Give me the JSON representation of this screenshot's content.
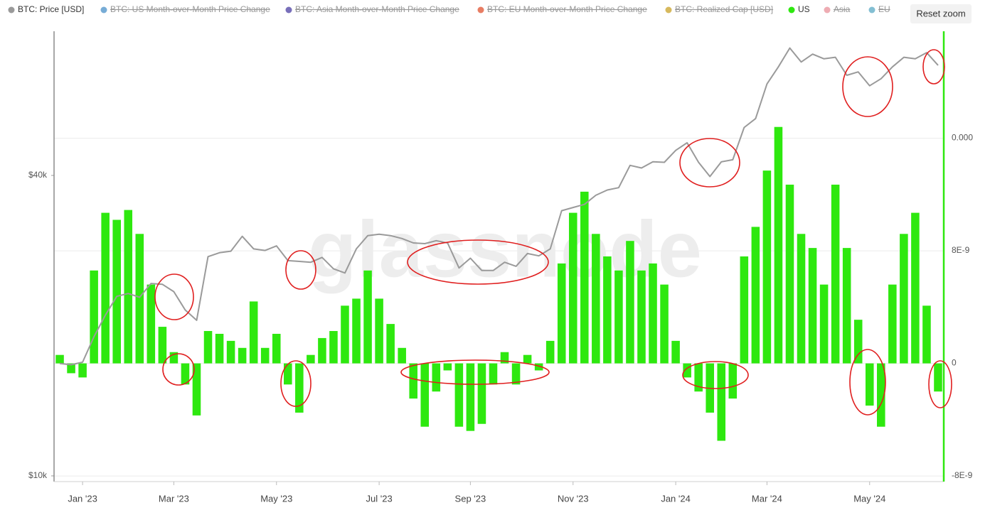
{
  "chart_data": {
    "type": "bar",
    "watermark": "glassnode",
    "reset_zoom": "Reset zoom",
    "categories": [
      null,
      null,
      "Jan '23",
      null,
      null,
      null,
      null,
      null,
      null,
      null,
      "Mar '23",
      null,
      null,
      null,
      null,
      null,
      null,
      null,
      null,
      "May '23",
      null,
      null,
      null,
      null,
      null,
      null,
      null,
      null,
      "Jul '23",
      null,
      null,
      null,
      null,
      null,
      null,
      null,
      "Sep '23",
      null,
      null,
      null,
      null,
      null,
      null,
      null,
      null,
      "Nov '23",
      null,
      null,
      null,
      null,
      null,
      null,
      null,
      null,
      "Jan '24",
      null,
      null,
      null,
      null,
      null,
      null,
      null,
      "Mar '24",
      null,
      null,
      null,
      null,
      null,
      null,
      null,
      null,
      "May '24",
      null,
      null,
      null,
      null,
      null,
      null
    ],
    "series": [
      {
        "name": "BTC: Price [USD]",
        "color": "#9a9a9a",
        "type": "line",
        "axis": "y",
        "hidden": false,
        "values": [
          16800,
          16700,
          16900,
          19000,
          21000,
          22900,
          23200,
          22800,
          24300,
          24200,
          23400,
          21500,
          20500,
          27500,
          28000,
          28200,
          30200,
          28500,
          28300,
          28900,
          27000,
          26900,
          26800,
          27400,
          26000,
          25500,
          28500,
          30300,
          30500,
          30300,
          29900,
          29300,
          29200,
          29600,
          29300,
          26100,
          27300,
          25800,
          25800,
          26800,
          26300,
          27900,
          27600,
          28500,
          34000,
          34500,
          35000,
          36500,
          37400,
          37800,
          41900,
          41400,
          42600,
          42500,
          44900,
          46500,
          42500,
          39800,
          42600,
          43000,
          49900,
          52000,
          61000,
          66000,
          72000,
          67500,
          70000,
          68500,
          69000,
          63500,
          64500,
          60500,
          62500,
          66000,
          69000,
          68500,
          70500,
          66500
        ]
      },
      {
        "name": "BTC: US Month-over-Month Price Change",
        "color": "#4a90c8",
        "hidden": true
      },
      {
        "name": "BTC: Asia Month-over-Month Price Change",
        "color": "#4b3fa3",
        "hidden": true
      },
      {
        "name": "BTC: EU Month-over-Month Price Change",
        "color": "#e0522f",
        "hidden": true
      },
      {
        "name": "BTC: Realized Cap [USD]",
        "color": "#c9a227",
        "hidden": true
      },
      {
        "name": "US",
        "color": "#2ee80f",
        "type": "bar",
        "axis": "y2",
        "hidden": false,
        "values": [
          6e-10,
          -7e-10,
          -1e-09,
          6.6e-09,
          1.07e-08,
          1.02e-08,
          1.09e-08,
          9.2e-09,
          5.6e-09,
          2.6e-09,
          8e-10,
          -1.5e-09,
          -3.7e-09,
          2.3e-09,
          2.1e-09,
          1.6e-09,
          1.1e-09,
          4.4e-09,
          1.1e-09,
          2.1e-09,
          -1.5e-09,
          -3.5e-09,
          6e-10,
          1.8e-09,
          2.3e-09,
          4.1e-09,
          4.6e-09,
          6.6e-09,
          4.6e-09,
          2.8e-09,
          1.1e-09,
          -2.5e-09,
          -4.5e-09,
          -2e-09,
          -5e-10,
          -4.5e-09,
          -4.8e-09,
          -4.3e-09,
          -1.5e-09,
          8e-10,
          -1.5e-09,
          6e-10,
          -5e-10,
          1.6e-09,
          7.1e-09,
          1.07e-08,
          1.22e-08,
          9.2e-09,
          7.6e-09,
          6.6e-09,
          8.7e-09,
          6.6e-09,
          7.1e-09,
          5.6e-09,
          1.6e-09,
          -1e-09,
          -2e-09,
          -3.5e-09,
          -5.5e-09,
          -2.5e-09,
          7.6e-09,
          9.7e-09,
          1.37e-08,
          1.68e-08,
          1.27e-08,
          9.2e-09,
          8.2e-09,
          5.6e-09,
          1.27e-08,
          8.2e-09,
          3.1e-09,
          -3e-09,
          -4.5e-09,
          5.6e-09,
          9.2e-09,
          1.07e-08,
          4.1e-09,
          -2e-09
        ]
      },
      {
        "name": "Asia",
        "color": "#e8909a",
        "hidden": true
      },
      {
        "name": "EU",
        "color": "#5aa9c4",
        "hidden": true
      }
    ],
    "log_scale_y": true,
    "ylim": [
      9740,
      77800
    ],
    "yticks": [
      {
        "value": 10000,
        "label": "$10k"
      },
      {
        "value": 40000,
        "label": "$40k"
      }
    ],
    "y2lim": [
      -8.4e-09,
      2.36e-08
    ],
    "y2ticks": [
      {
        "value": -8e-09,
        "label": "-8E-9"
      },
      0,
      {
        "value": 8e-09,
        "label": "8E-9"
      },
      {
        "value": 1.6e-08,
        "label": "0.000"
      }
    ],
    "grid": true,
    "legend": "top"
  }
}
